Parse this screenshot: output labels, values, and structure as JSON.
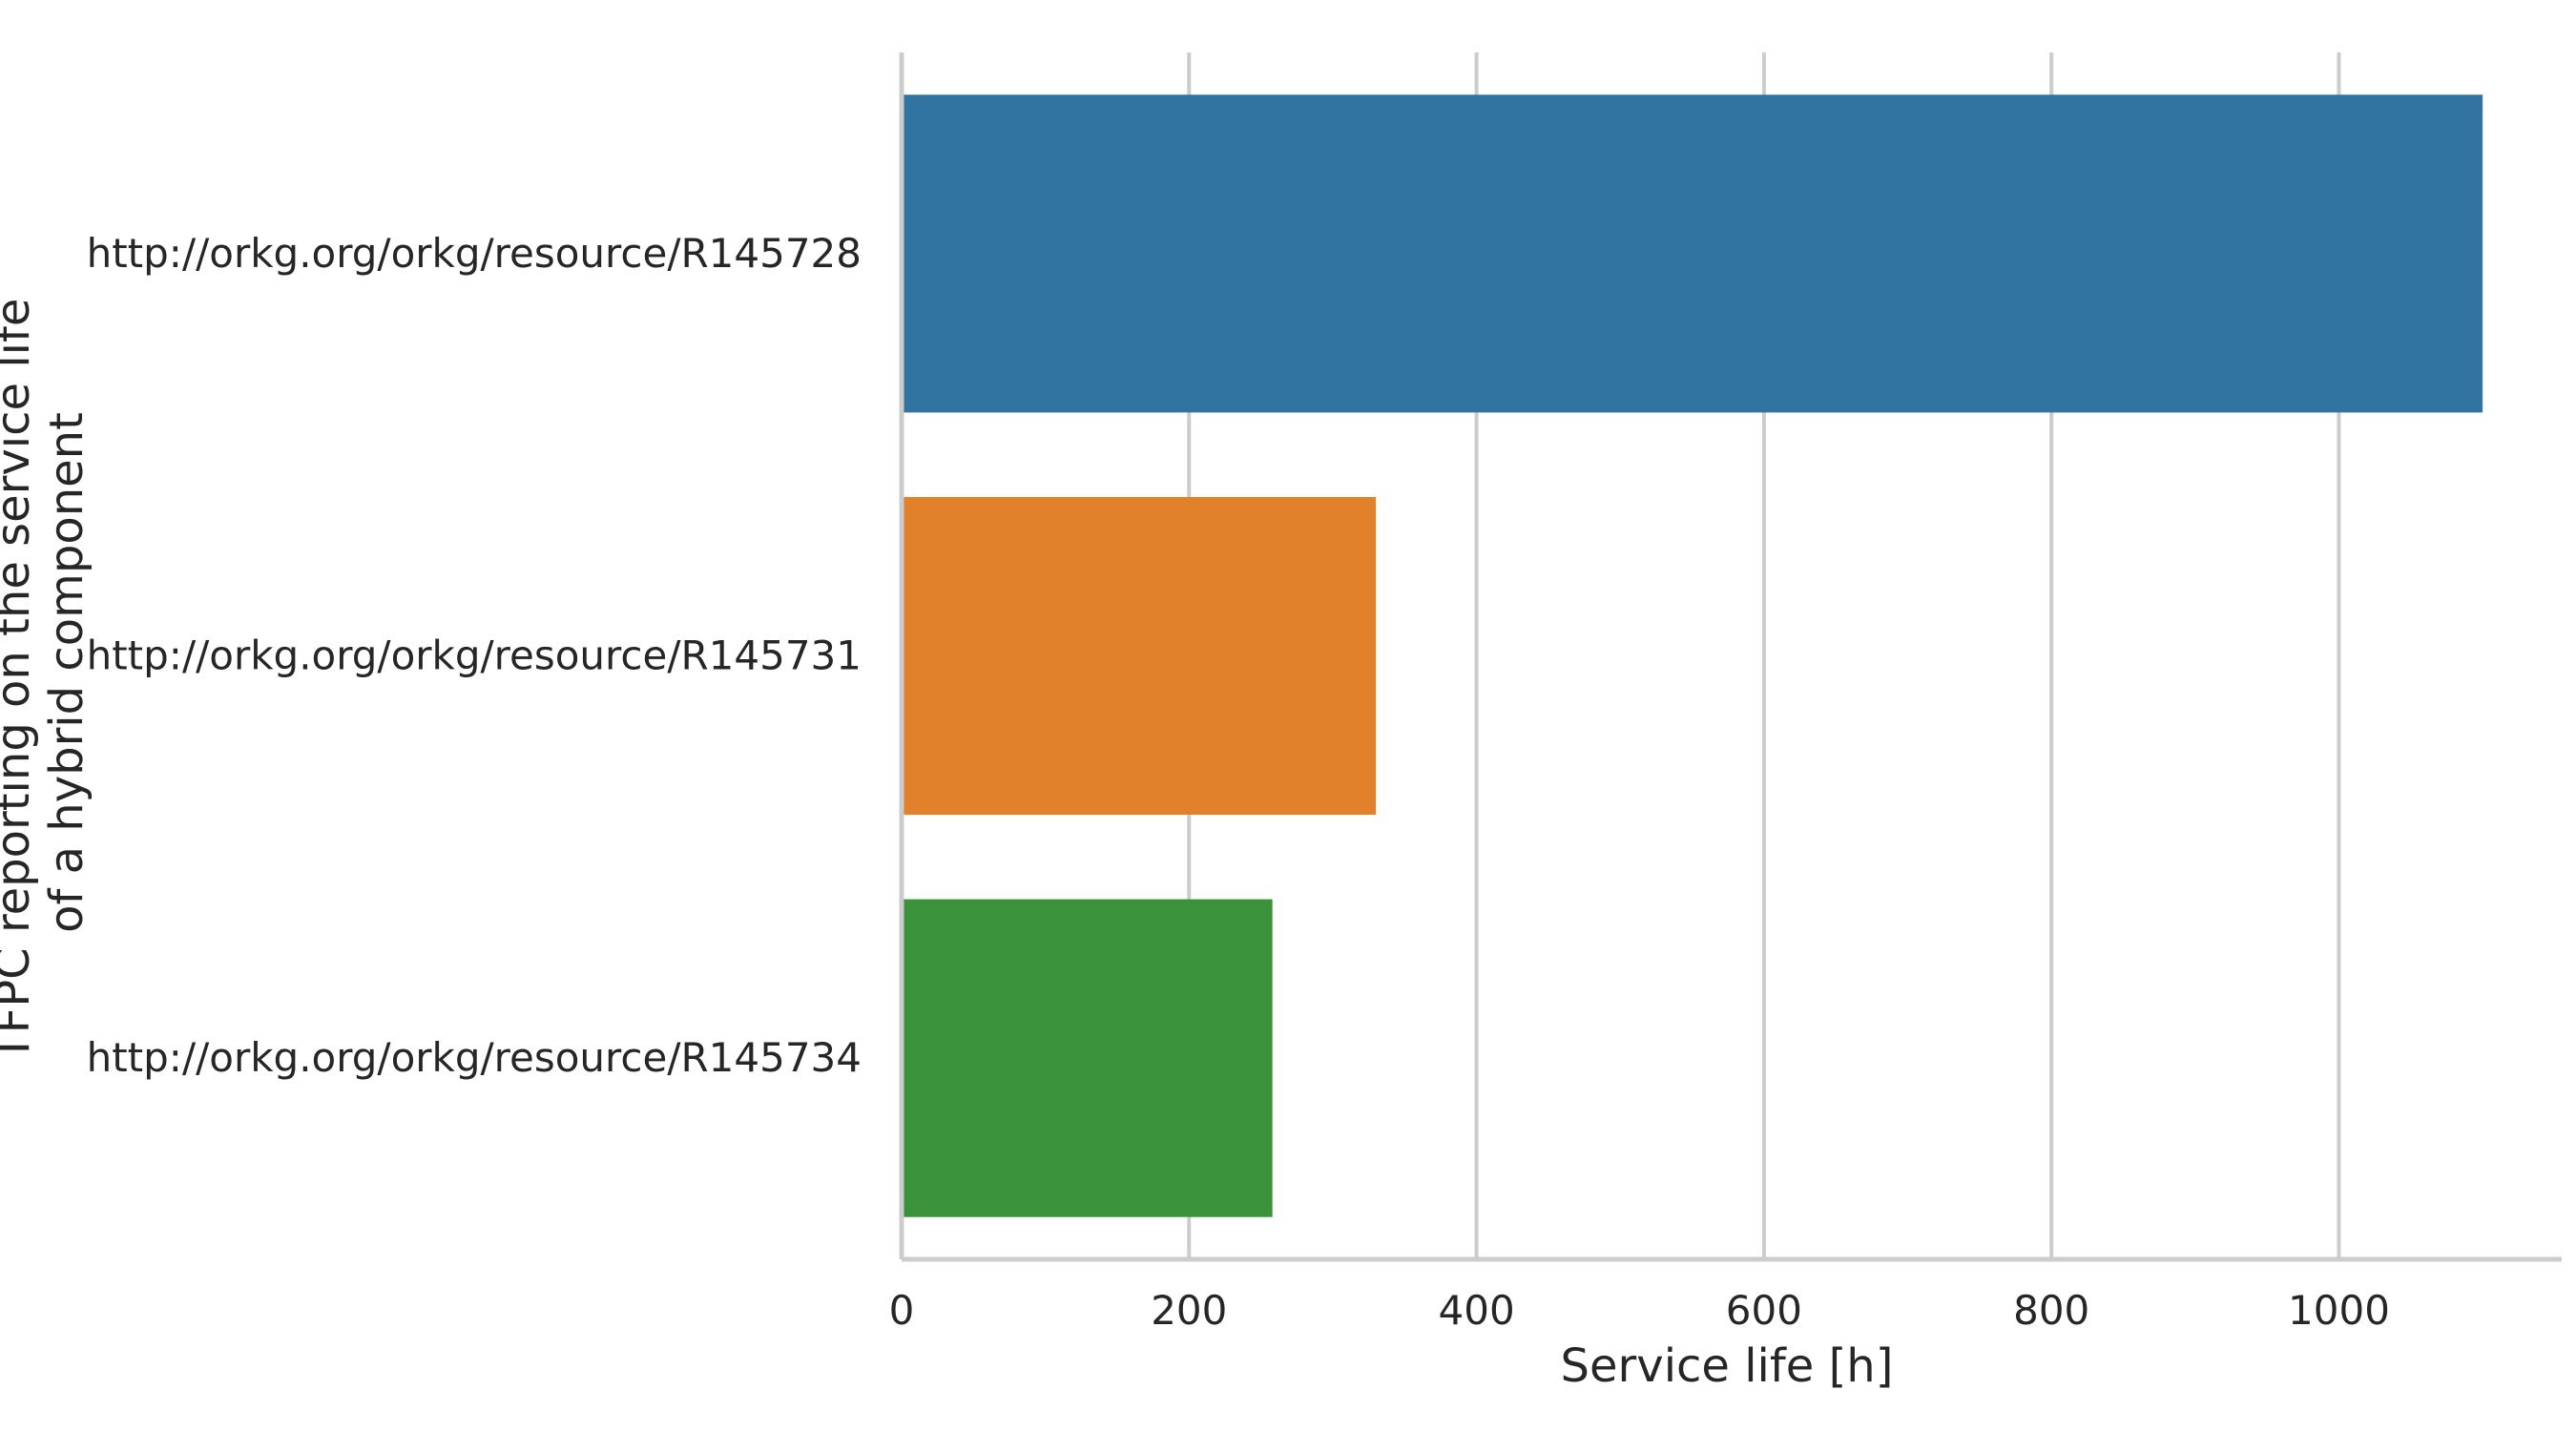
{
  "chart_data": {
    "type": "bar",
    "orientation": "horizontal",
    "categories": [
      "http://orkg.org/orkg/resource/R145728",
      "http://orkg.org/orkg/resource/R145731",
      "http://orkg.org/orkg/resource/R145734"
    ],
    "values": [
      1100,
      330,
      258
    ],
    "colors": [
      "#3274a1",
      "#e1812c",
      "#3a923a"
    ],
    "xlabel": "Service life [h]",
    "ylabel_lines": [
      "TFPC reporting on the service life",
      "of a hybrid component"
    ],
    "xlim": [
      0,
      1155
    ],
    "xticks": [
      0,
      200,
      400,
      600,
      800,
      1000
    ],
    "grid": "x-only",
    "legend": "none"
  }
}
